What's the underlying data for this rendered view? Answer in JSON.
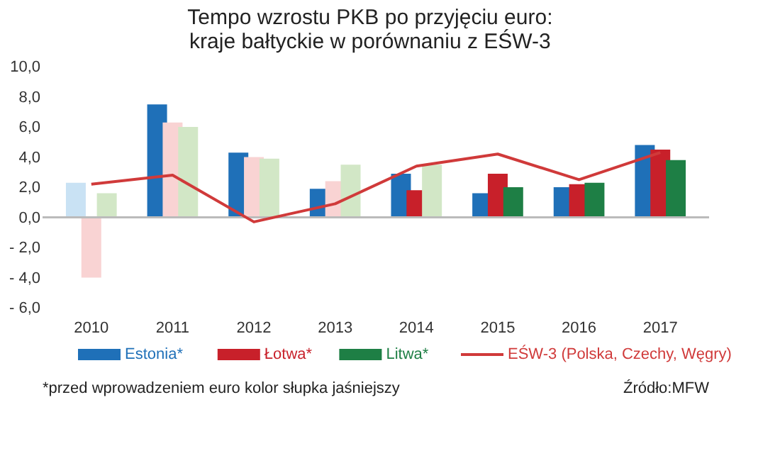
{
  "chart_data": {
    "type": "bar",
    "title": [
      "Tempo wzrostu PKB po przyjęciu euro:",
      "kraje bałtyckie w porównaniu z EŚW-3"
    ],
    "categories": [
      "2010",
      "2011",
      "2012",
      "2013",
      "2014",
      "2015",
      "2016",
      "2017"
    ],
    "series": [
      {
        "name": "Estonia*",
        "color": "#1f70b8",
        "colors": [
          "#c9e2f4",
          "#1f70b8",
          "#1f70b8",
          "#1f70b8",
          "#1f70b8",
          "#1f70b8",
          "#1f70b8",
          "#1f70b8"
        ],
        "values": [
          2.3,
          7.5,
          4.3,
          1.9,
          2.9,
          1.6,
          2.0,
          4.8
        ]
      },
      {
        "name": "Łotwa*",
        "color": "#c8202a",
        "colors": [
          "#f9d3d3",
          "#f9d3d3",
          "#f9d3d3",
          "#f9d3d3",
          "#c8202a",
          "#c8202a",
          "#c8202a",
          "#c8202a"
        ],
        "values": [
          -4.0,
          6.3,
          4.0,
          2.4,
          1.8,
          2.9,
          2.2,
          4.5
        ]
      },
      {
        "name": "Litwa*",
        "color": "#1e7f45",
        "colors": [
          "#d2e7c6",
          "#d2e7c6",
          "#d2e7c6",
          "#d2e7c6",
          "#d2e7c6",
          "#1e7f45",
          "#1e7f45",
          "#1e7f45"
        ],
        "values": [
          1.6,
          6.0,
          3.9,
          3.5,
          3.5,
          2.0,
          2.3,
          3.8
        ]
      },
      {
        "name": "EŚW-3 (Polska, Czechy, Węgry)",
        "type": "line",
        "color": "#d03a3a",
        "values": [
          2.2,
          2.8,
          -0.3,
          0.9,
          3.4,
          4.2,
          2.5,
          4.3
        ]
      }
    ],
    "ylim": [
      -6,
      10
    ],
    "yticks": [
      {
        "value": -6,
        "label": "- 6,0"
      },
      {
        "value": -4,
        "label": "- 4,0"
      },
      {
        "value": -2,
        "label": "- 2,0"
      },
      {
        "value": 0,
        "label": "0,0"
      },
      {
        "value": 2,
        "label": "2,0"
      },
      {
        "value": 4,
        "label": "4,0"
      },
      {
        "value": 6,
        "label": "6,0"
      },
      {
        "value": 8,
        "label": "8,0"
      },
      {
        "value": 10,
        "label": "10,0"
      }
    ],
    "ref_lines": [
      {
        "axis": "y",
        "value": 0,
        "color": "#bbbbbb"
      }
    ],
    "grid": false,
    "legend": "bottom",
    "annotations": [
      "*przed wprowadzeniem euro kolor słupka jaśniejszy",
      "Źródło:MFW"
    ]
  }
}
